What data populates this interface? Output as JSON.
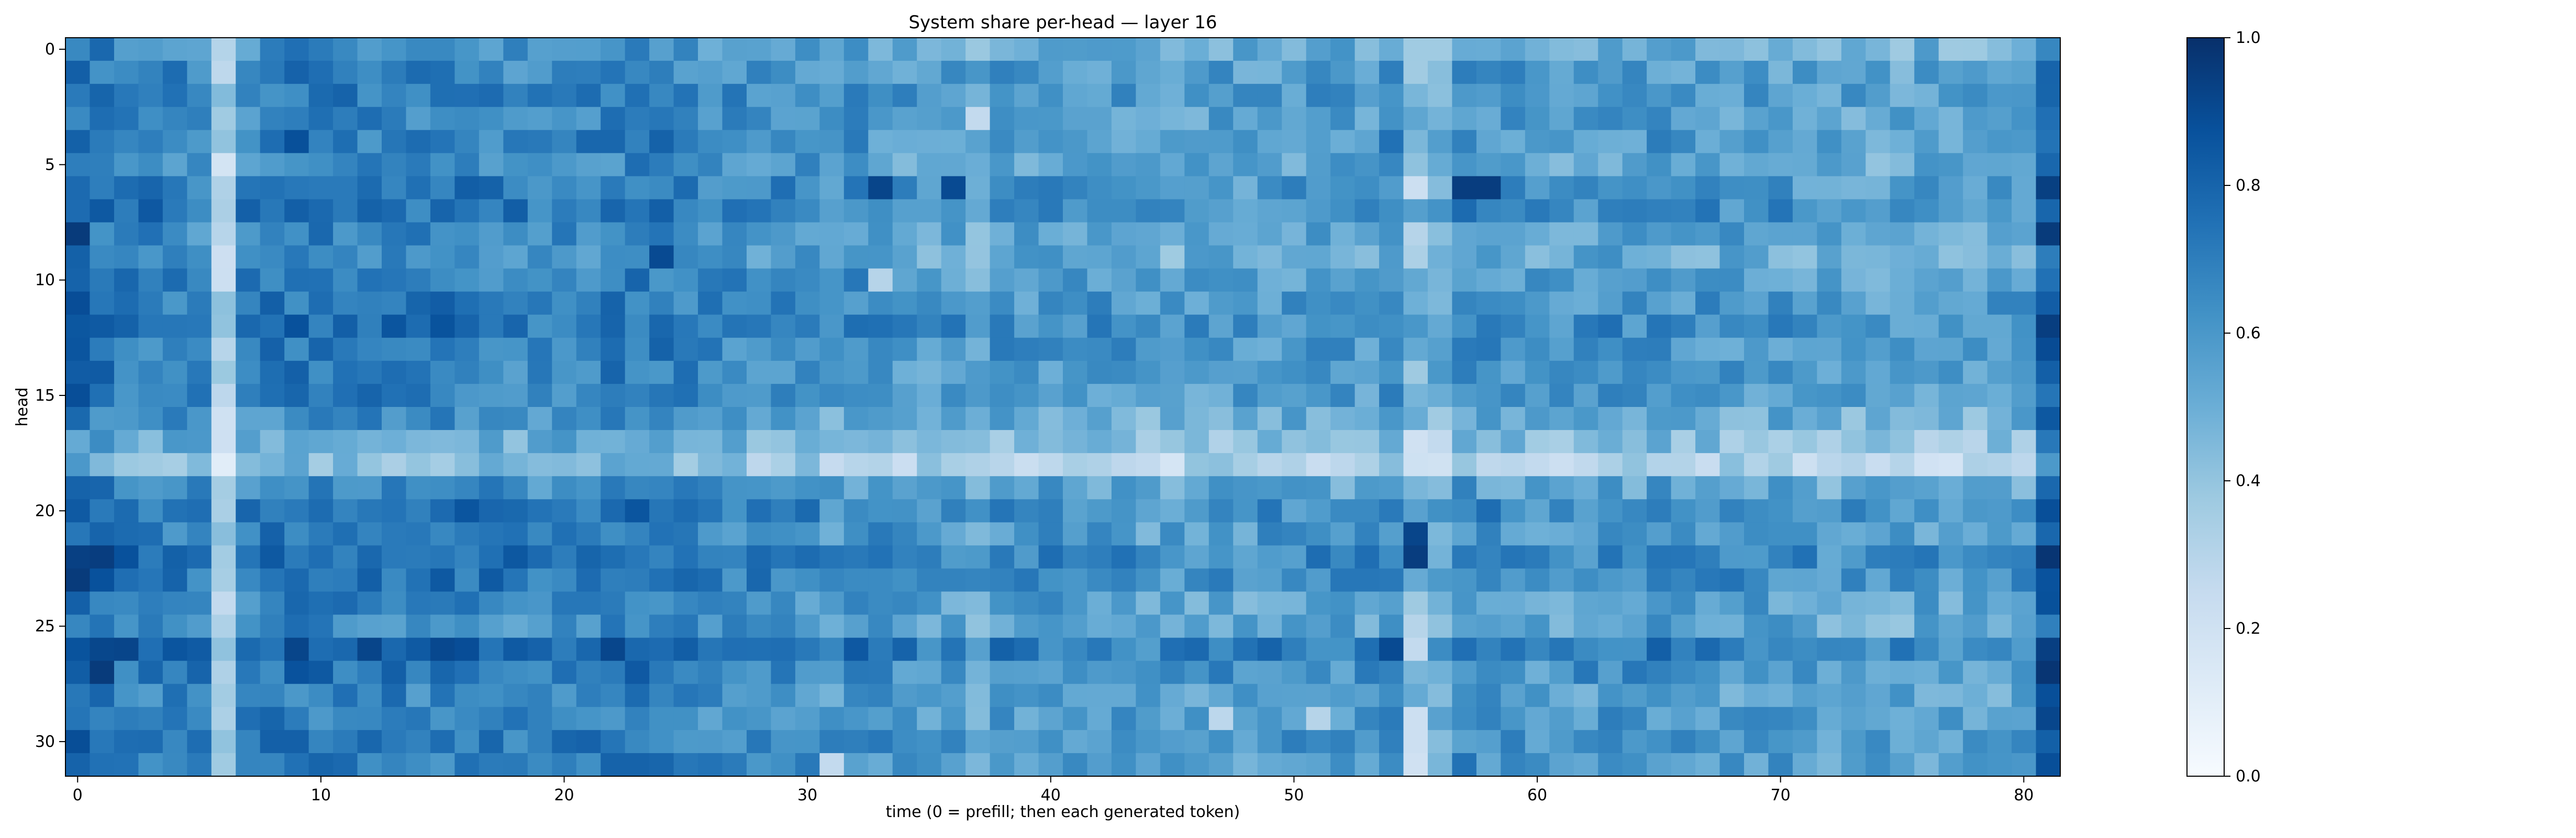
{
  "chart_data": {
    "type": "heatmap",
    "title": "System share per-head — layer 16",
    "xlabel": "time (0 = prefill; then each generated token)",
    "ylabel": "head",
    "x_range": [
      0,
      81
    ],
    "y_range": [
      0,
      31
    ],
    "x_ticks": [
      0,
      10,
      20,
      30,
      40,
      50,
      60,
      70,
      80
    ],
    "y_ticks": [
      0,
      5,
      10,
      15,
      20,
      25,
      30
    ],
    "y_inverted": true,
    "colormap": "Blues",
    "colormap_stops": [
      "#f7fbff",
      "#deebf7",
      "#c6dbef",
      "#9ecae1",
      "#6baed6",
      "#4292c6",
      "#2171b5",
      "#08519c",
      "#08306b"
    ],
    "colorbar": {
      "range": [
        0,
        1
      ],
      "ticks": [
        0.0,
        0.2,
        0.4,
        0.6,
        0.8,
        1.0
      ],
      "tick_labels": [
        "0.0",
        "0.2",
        "0.4",
        "0.6",
        "0.8",
        "1.0"
      ]
    },
    "grid": false,
    "features": {
      "row_means": [
        0.58,
        0.63,
        0.66,
        0.62,
        0.64,
        0.6,
        0.66,
        0.7,
        0.62,
        0.58,
        0.64,
        0.66,
        0.7,
        0.66,
        0.64,
        0.64,
        0.58,
        0.48,
        0.38,
        0.6,
        0.7,
        0.65,
        0.72,
        0.7,
        0.62,
        0.6,
        0.76,
        0.68,
        0.62,
        0.64,
        0.66,
        0.64
      ],
      "col_offsets": [
        0.14,
        0.1,
        0.06,
        0.04,
        0.04,
        0.02,
        -0.32,
        0.04,
        0.06,
        0.08,
        0.06,
        0.06,
        0.06,
        0.06,
        0.04,
        0.06,
        0.06,
        0.04,
        0.02,
        0.02,
        0.04,
        0.04,
        0.06,
        0.06,
        0.06,
        0.02,
        0.0,
        0.0,
        0.0,
        0.0,
        0.0,
        -0.06,
        -0.02,
        -0.04,
        -0.06,
        -0.06,
        -0.06,
        -0.12,
        -0.04,
        -0.06,
        -0.04,
        -0.04,
        -0.06,
        -0.06,
        -0.1,
        -0.1,
        -0.08,
        -0.06,
        -0.08,
        -0.06,
        -0.06,
        -0.06,
        -0.06,
        -0.06,
        0.0,
        -0.16,
        -0.14,
        0.0,
        -0.04,
        -0.04,
        -0.08,
        -0.06,
        -0.06,
        -0.04,
        -0.06,
        -0.04,
        -0.06,
        -0.06,
        -0.06,
        -0.06,
        -0.06,
        -0.08,
        -0.1,
        -0.1,
        -0.1,
        -0.1,
        -0.08,
        -0.1,
        -0.1,
        -0.08,
        -0.08,
        0.18
      ],
      "hotspots": [
        [
          6,
          33,
          0.92
        ],
        [
          6,
          36,
          0.9
        ],
        [
          6,
          57,
          0.95
        ],
        [
          6,
          58,
          0.95
        ],
        [
          8,
          0,
          0.96
        ],
        [
          8,
          81,
          0.96
        ],
        [
          9,
          24,
          0.9
        ],
        [
          22,
          1,
          0.95
        ],
        [
          23,
          0,
          0.96
        ],
        [
          27,
          1,
          0.96
        ],
        [
          27,
          81,
          0.98
        ],
        [
          21,
          55,
          0.92
        ],
        [
          22,
          55,
          0.95
        ],
        [
          26,
          9,
          0.92
        ],
        [
          26,
          12,
          0.92
        ],
        [
          26,
          54,
          0.9
        ],
        [
          4,
          9,
          0.88
        ],
        [
          5,
          6,
          0.18
        ],
        [
          6,
          55,
          0.22
        ],
        [
          8,
          55,
          0.3
        ],
        [
          17,
          55,
          0.2
        ],
        [
          25,
          55,
          0.3
        ],
        [
          29,
          55,
          0.22
        ],
        [
          30,
          55,
          0.22
        ],
        [
          31,
          55,
          0.2
        ],
        [
          26,
          55,
          0.26
        ],
        [
          3,
          37,
          0.26
        ],
        [
          10,
          33,
          0.3
        ],
        [
          29,
          47,
          0.28
        ],
        [
          29,
          51,
          0.3
        ],
        [
          31,
          31,
          0.26
        ]
      ],
      "seed": 16
    }
  }
}
